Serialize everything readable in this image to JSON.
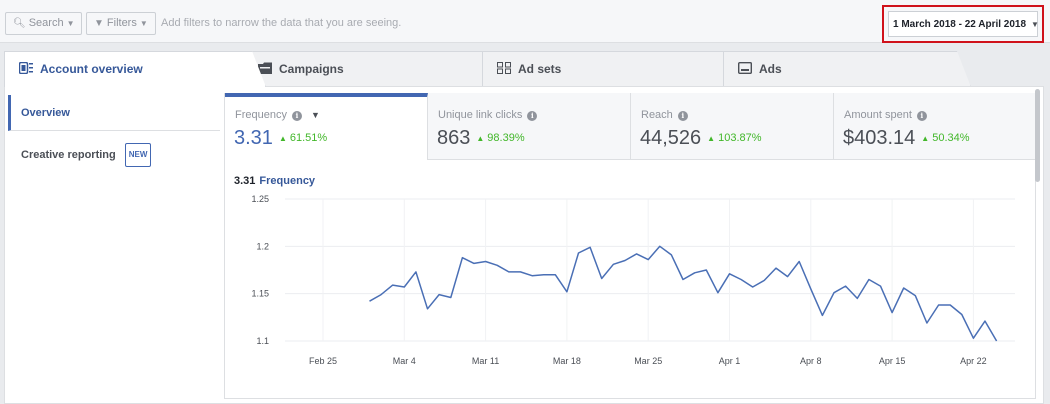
{
  "filters": {
    "search_label": "Search",
    "filters_label": "Filters",
    "hint": "Add filters to narrow the data that you are seeing.",
    "date_range": "1 March 2018 - 22 April 2018"
  },
  "tabs": [
    {
      "label": "Account overview"
    },
    {
      "label": "Campaigns"
    },
    {
      "label": "Ad sets"
    },
    {
      "label": "Ads"
    }
  ],
  "sidebar": {
    "items": [
      {
        "label": "Overview"
      },
      {
        "label": "Creative reporting",
        "badge": "NEW"
      }
    ]
  },
  "metrics": [
    {
      "label": "Frequency",
      "value": "3.31",
      "change": "61.51%"
    },
    {
      "label": "Unique link clicks",
      "value": "863",
      "change": "98.39%"
    },
    {
      "label": "Reach",
      "value": "44,526",
      "change": "103.87%"
    },
    {
      "label": "Amount spent",
      "value": "$403.14",
      "change": "50.34%"
    }
  ],
  "chart_header": {
    "value": "3.31",
    "name": "Frequency"
  },
  "colors": {
    "accent": "#4267b2",
    "positive": "#42b72a",
    "highlight_border": "#d0121b"
  },
  "chart_data": {
    "type": "line",
    "y_ticks": [
      "1.25",
      "1.2",
      "1.15",
      "1.1"
    ],
    "ylim": [
      1.1,
      1.25
    ],
    "x_ticks": [
      "Feb 25",
      "Mar 4",
      "Mar 11",
      "Mar 18",
      "Mar 25",
      "Apr 1",
      "Apr 8",
      "Apr 15",
      "Apr 22"
    ],
    "grid": true,
    "series": [
      {
        "values": [
          1.142,
          1.149,
          1.159,
          1.157,
          1.173,
          1.134,
          1.149,
          1.146,
          1.188,
          1.182,
          1.184,
          1.18,
          1.173,
          1.173,
          1.169,
          1.17,
          1.17,
          1.152,
          1.193,
          1.199,
          1.166,
          1.181,
          1.185,
          1.192,
          1.186,
          1.2,
          1.191,
          1.165,
          1.172,
          1.175,
          1.151,
          1.171,
          1.165,
          1.157,
          1.164,
          1.177,
          1.168,
          1.184,
          1.155,
          1.127,
          1.151,
          1.158,
          1.145,
          1.165,
          1.158,
          1.13,
          1.156,
          1.148,
          1.119,
          1.138,
          1.138,
          1.128,
          1.103,
          1.121,
          1.1
        ]
      }
    ]
  }
}
